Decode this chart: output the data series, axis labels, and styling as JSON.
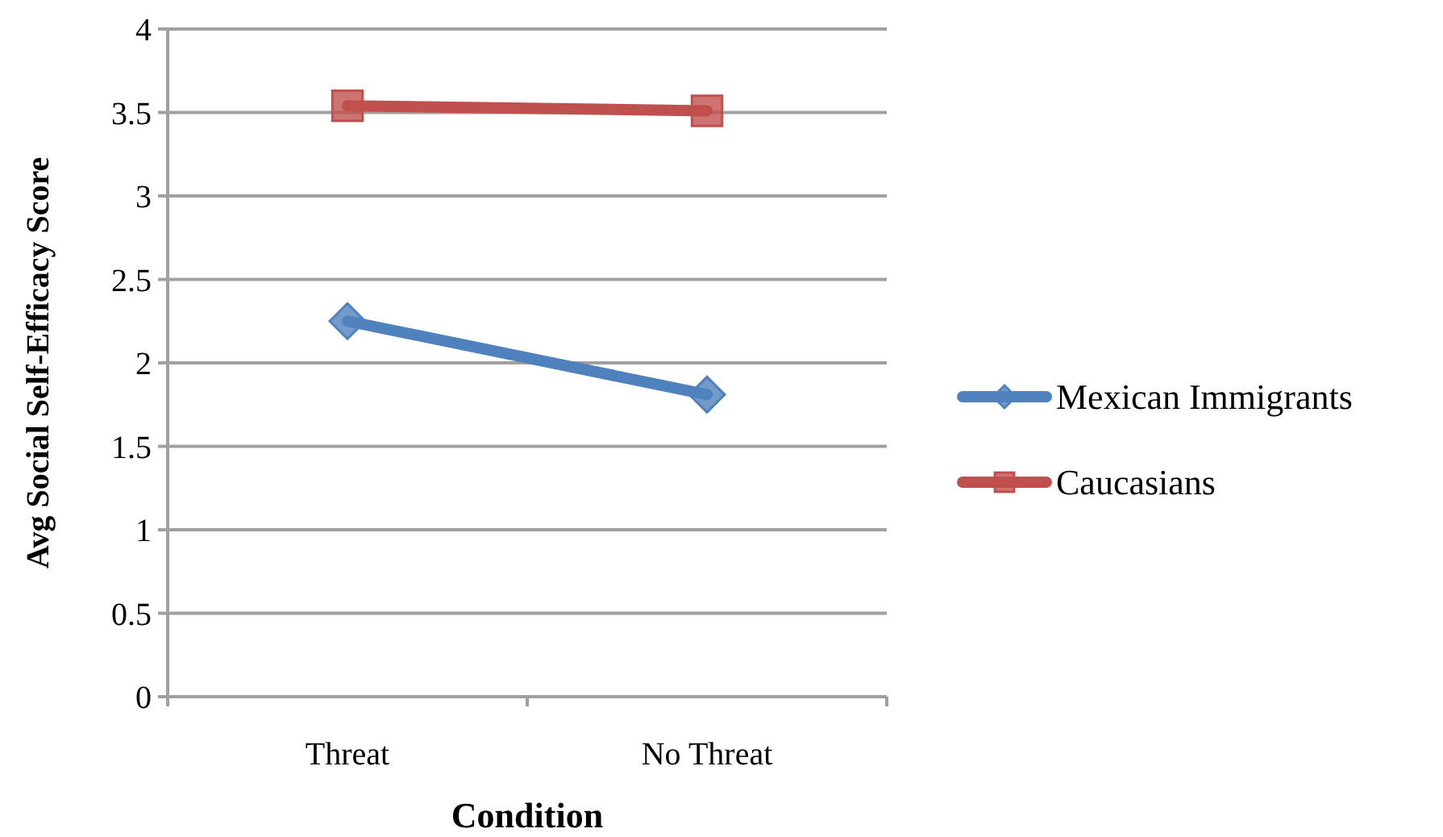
{
  "chart_data": {
    "type": "line",
    "xlabel": "Condition",
    "ylabel": "Avg Social Self-Efficacy Score",
    "categories": [
      "Threat",
      "No Threat"
    ],
    "series": [
      {
        "name": "Mexican Immigrants",
        "color": "#4f81bd",
        "values": [
          2.25,
          1.81
        ],
        "marker": "diamond"
      },
      {
        "name": "Caucasians",
        "color": "#c0504d",
        "values": [
          3.54,
          3.51
        ],
        "marker": "square"
      }
    ],
    "ylim": [
      0,
      4
    ],
    "yticks": [
      0,
      0.5,
      1,
      1.5,
      2,
      2.5,
      3,
      3.5,
      4
    ],
    "grid": "y",
    "legend": "right"
  }
}
